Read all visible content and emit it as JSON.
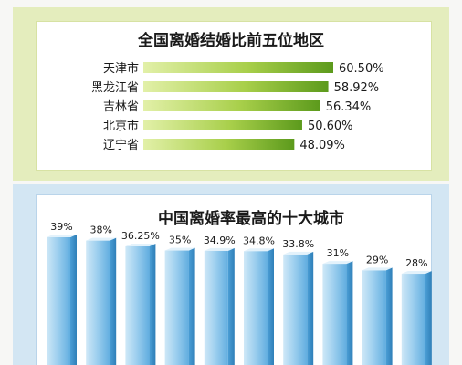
{
  "chart_data": [
    {
      "type": "bar",
      "orientation": "horizontal",
      "title": "全国离婚结婚比前五位地区",
      "categories": [
        "天津市",
        "黑龙江省",
        "吉林省",
        "北京市",
        "辽宁省"
      ],
      "values": [
        60.5,
        58.92,
        56.34,
        50.6,
        48.09
      ],
      "value_labels": [
        "60.50%",
        "58.92%",
        "56.34%",
        "50.60%",
        "48.09%"
      ],
      "colors": {
        "bar_light": "#d4e98c",
        "bar_dark": "#5c9a1c",
        "panel": "#e4edbd"
      }
    },
    {
      "type": "bar",
      "orientation": "vertical",
      "title": "中国离婚率最高的十大城市",
      "values": [
        39,
        38,
        36.25,
        35,
        34.9,
        34.8,
        33.8,
        31,
        29,
        28
      ],
      "value_labels": [
        "39%",
        "38%",
        "36.25%",
        "35%",
        "34.9%",
        "34.8%",
        "33.8%",
        "31%",
        "29%",
        "28%"
      ],
      "colors": {
        "bar_light": "#cfe8f7",
        "bar_mid": "#86c3ea",
        "bar_dark": "#4c9fd6",
        "panel": "#d3e6f3"
      }
    }
  ]
}
